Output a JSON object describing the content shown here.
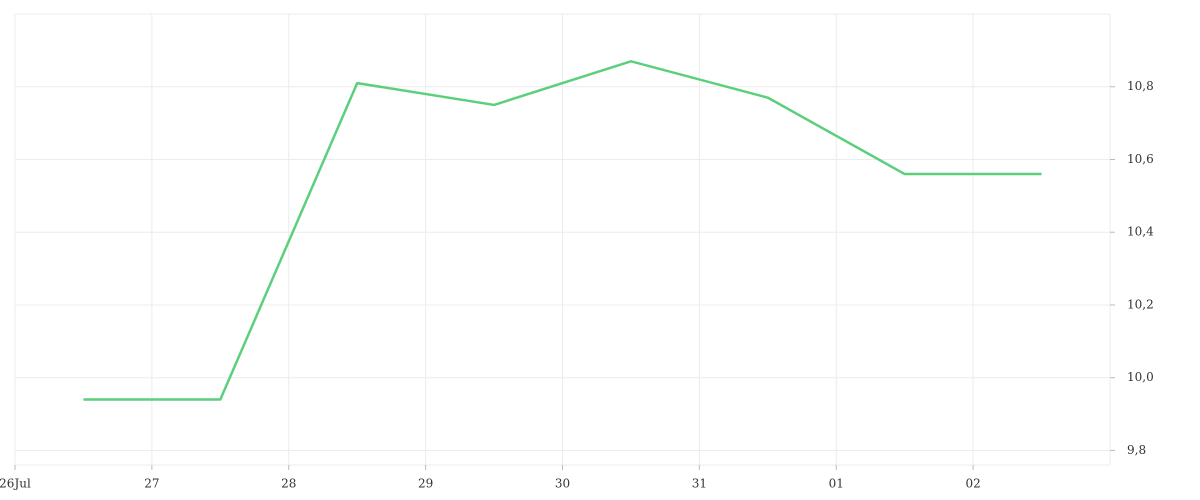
{
  "chart_data": {
    "type": "line",
    "x": [
      0.5,
      1.5,
      2.5,
      3.5,
      4.5,
      5.5,
      6.5,
      7.5
    ],
    "series": [
      {
        "color": "#5ccf7c",
        "values": [
          9.94,
          9.94,
          10.81,
          10.75,
          10.87,
          10.77,
          10.56,
          10.56
        ]
      }
    ],
    "xlim": [
      0,
      8
    ],
    "xticks": [
      {
        "value": 0,
        "label": "26Jul"
      },
      {
        "value": 1,
        "label": "27"
      },
      {
        "value": 2,
        "label": "28"
      },
      {
        "value": 3,
        "label": "29"
      },
      {
        "value": 4,
        "label": "30"
      },
      {
        "value": 5,
        "label": "31"
      },
      {
        "value": 6,
        "label": "01"
      },
      {
        "value": 7,
        "label": "02"
      }
    ],
    "ylim": [
      9.76,
      11.0
    ],
    "yticks": [
      {
        "value": 9.8,
        "label": "9,8"
      },
      {
        "value": 10.0,
        "label": "10,0"
      },
      {
        "value": 10.2,
        "label": "10,2"
      },
      {
        "value": 10.4,
        "label": "10,4"
      },
      {
        "value": 10.6,
        "label": "10,6"
      },
      {
        "value": 10.8,
        "label": "10,8"
      }
    ],
    "grid": true
  }
}
